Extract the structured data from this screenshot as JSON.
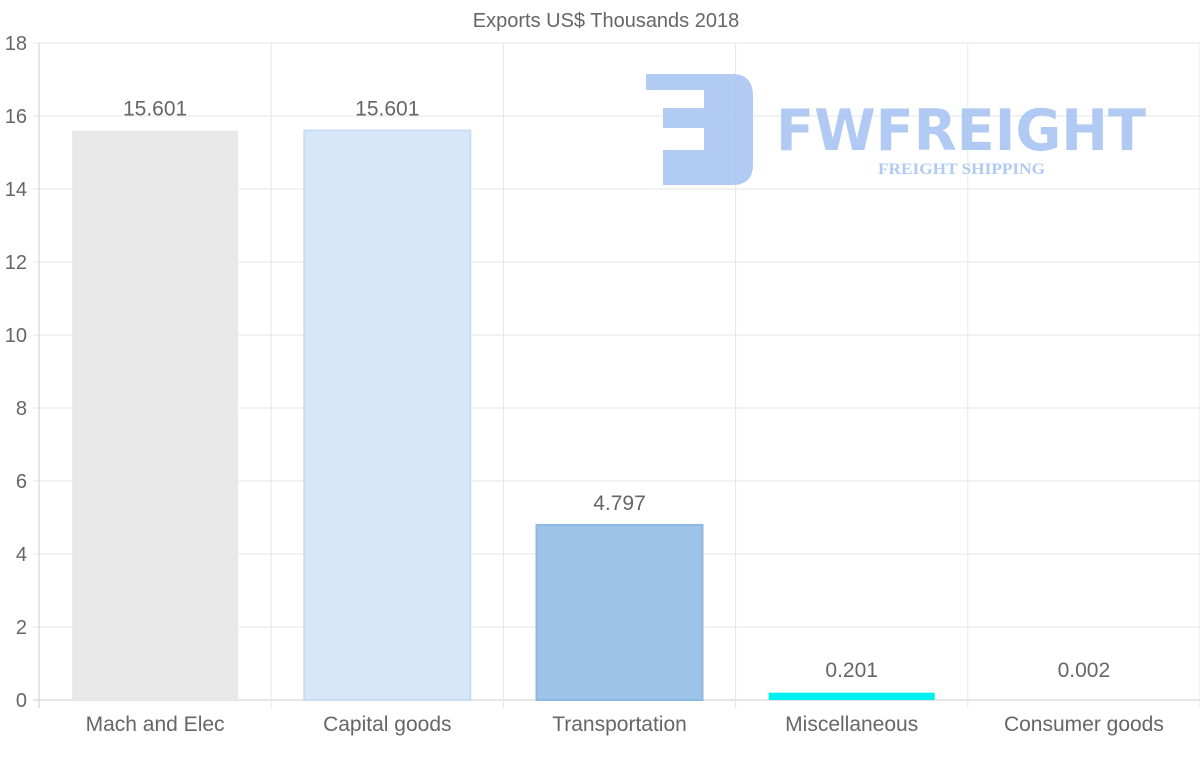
{
  "watermark": {
    "brand": "FWFREIGHT",
    "tagline": "FREIGHT SHIPPING",
    "color": "#a9c5f2"
  },
  "chart_data": {
    "type": "bar",
    "title": "Exports US$ Thousands 2018",
    "xlabel": "",
    "ylabel": "",
    "categories": [
      "Mach and Elec",
      "Capital goods",
      "Transportation",
      "Miscellaneous",
      "Consumer goods"
    ],
    "values": [
      15.601,
      15.601,
      4.797,
      0.201,
      0.002
    ],
    "data_labels": [
      "15.601",
      "15.601",
      "4.797",
      "0.201",
      "0.002"
    ],
    "colors": [
      "#e8e8e8",
      "#d6e7f9",
      "#9dc4e8",
      "#00f0f0",
      "#d0d0d0"
    ],
    "ylim": [
      0,
      18
    ],
    "yticks": [
      0,
      2,
      4,
      6,
      8,
      10,
      12,
      14,
      16,
      18
    ],
    "grid": true,
    "legend": "none"
  }
}
